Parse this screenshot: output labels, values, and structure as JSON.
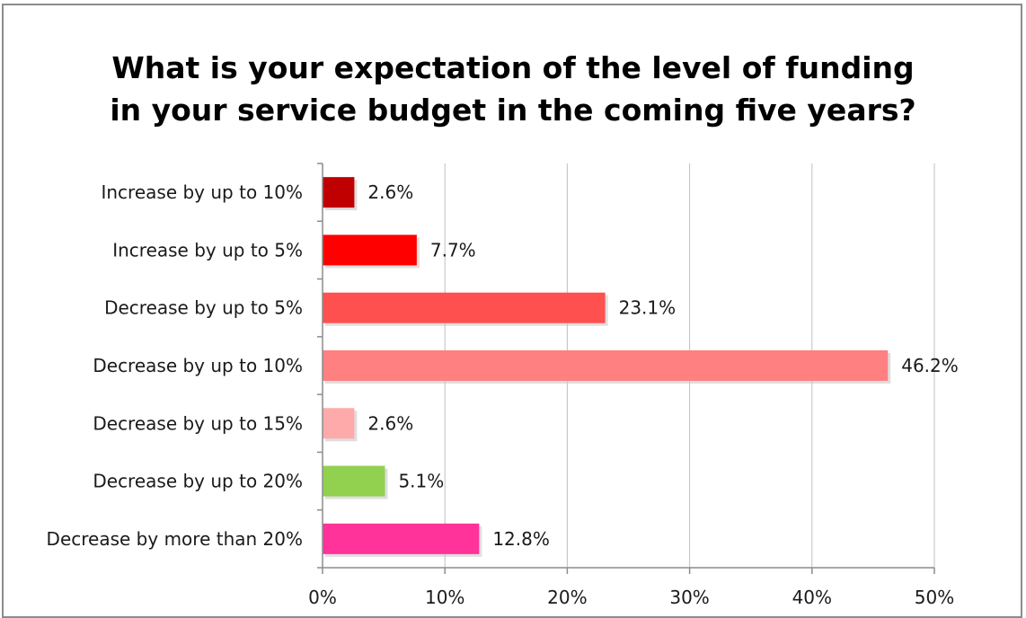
{
  "chart_data": {
    "type": "bar",
    "orientation": "horizontal",
    "title": "What is your expectation of the level of funding in your service budget in the coming five years?",
    "title_lines": [
      "What is your expectation of the level of funding",
      "in your service budget in the coming five years?"
    ],
    "categories": [
      "Increase by up to 10%",
      "Increase by up to 5%",
      "Decrease by up to 5%",
      "Decrease by up to 10%",
      "Decrease by up to 15%",
      "Decrease by up to 20%",
      "Decrease by more than 20%"
    ],
    "values": [
      2.6,
      7.7,
      23.1,
      46.2,
      2.6,
      5.1,
      12.8
    ],
    "value_labels": [
      "2.6%",
      "7.7%",
      "23.1%",
      "46.2%",
      "2.6%",
      "5.1%",
      "12.8%"
    ],
    "colors": [
      "#c00000",
      "#ff0000",
      "#ff5050",
      "#ff8080",
      "#ffaaaa",
      "#92d050",
      "#ff3399"
    ],
    "xlim": [
      0,
      50
    ],
    "xticks": [
      0,
      10,
      20,
      30,
      40,
      50
    ],
    "xtick_labels": [
      "0%",
      "10%",
      "20%",
      "30%",
      "40%",
      "50%"
    ],
    "xlabel": "",
    "ylabel": "",
    "grid": "vertical",
    "legend": "none"
  }
}
